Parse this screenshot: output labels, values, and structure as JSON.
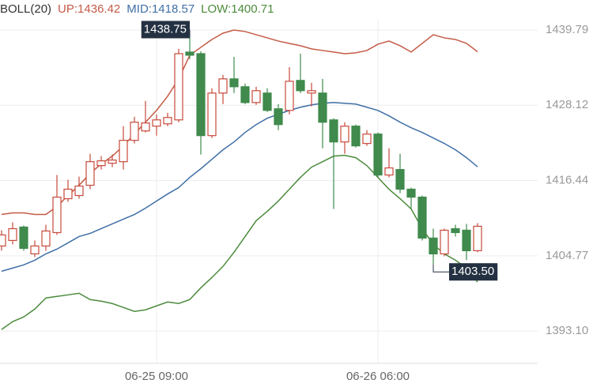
{
  "chart_data": {
    "type": "candlestick",
    "title": "BOLL(20)",
    "categories": [
      null,
      null,
      null,
      null,
      null,
      null,
      null,
      null,
      null,
      null,
      null,
      null,
      null,
      null,
      "06-25 09:00",
      null,
      null,
      null,
      null,
      null,
      null,
      null,
      null,
      null,
      null,
      null,
      null,
      null,
      null,
      null,
      null,
      null,
      null,
      null,
      "06-26 06:00",
      null,
      null,
      null,
      null,
      null,
      null,
      null,
      null,
      null
    ],
    "open": [
      1406.29,
      1407.15,
      1409.23,
      1405.07,
      1406.29,
      1408.37,
      1413.63,
      1414.12,
      1415.71,
      1418.76,
      1419.13,
      1419.37,
      1422.68,
      1424.14,
      1424.88,
      1425.24,
      1425.85,
      1436.37,
      1436.12,
      1423.41,
      1430.01,
      1432.21,
      1430.99,
      1428.54,
      1430.01,
      1427.57,
      1427.32,
      1431.97,
      1430.01,
      1430.01,
      1425.85,
      1422.43,
      1424.88,
      1422.19,
      1423.65,
      1417.3,
      1418.15,
      1415.1,
      1413.87,
      1407.52,
      1405.07,
      1408.98,
      1408.74,
      1405.56
    ],
    "high": [
      1408.74,
      1409.96,
      1409.47,
      1407.15,
      1409.59,
      1417.3,
      1416.56,
      1417.05,
      1420.6,
      1420.23,
      1420.48,
      1424.88,
      1426.34,
      1428.79,
      1426.71,
      1426.95,
      1436.86,
      1438.75,
      1436.49,
      1430.74,
      1432.82,
      1435.63,
      1431.48,
      1430.99,
      1430.74,
      1428.3,
      1434.04,
      1436.12,
      1431.6,
      1432.21,
      1426.1,
      1425.49,
      1425.12,
      1424.26,
      1423.9,
      1421.45,
      1420.6,
      1415.34,
      1414.12,
      1408.98,
      1408.98,
      1409.59,
      1409.72,
      1409.84
    ],
    "low": [
      1405.56,
      1406.54,
      1405.56,
      1404.58,
      1405.56,
      1408.01,
      1413.14,
      1413.63,
      1415.1,
      1418.15,
      1418.52,
      1418.15,
      1422.19,
      1423.9,
      1423.41,
      1424.88,
      1425.49,
      1435.27,
      1420.48,
      1423.04,
      1428.3,
      1430.01,
      1428.3,
      1428.18,
      1427.08,
      1424.26,
      1426.71,
      1430.01,
      1427.93,
      1421.45,
      1412.04,
      1420.6,
      1421.58,
      1421.82,
      1416.93,
      1416.93,
      1414.48,
      1412.04,
      1407.15,
      1403.5,
      1404.7,
      1407.76,
      1404.09,
      1405.32
    ],
    "close": [
      1408.01,
      1408.98,
      1405.93,
      1406.29,
      1408.62,
      1413.87,
      1415.1,
      1415.59,
      1419.37,
      1419.5,
      1419.62,
      1422.68,
      1425.49,
      1425.37,
      1425.85,
      1426.22,
      1436.12,
      1435.88,
      1423.41,
      1430.01,
      1432.21,
      1430.99,
      1428.54,
      1430.38,
      1427.32,
      1425.12,
      1431.84,
      1430.38,
      1430.38,
      1425.49,
      1422.43,
      1424.88,
      1421.82,
      1423.65,
      1417.3,
      1418.4,
      1415.1,
      1413.87,
      1407.52,
      1405.07,
      1408.74,
      1408.37,
      1405.56,
      1409.35
    ],
    "up_color": "#c8493b",
    "down_color": "#3f8a4c",
    "series": [
      {
        "name": "UP:1436.42",
        "color": "#c55a46",
        "values": [
          1411.18,
          1411.43,
          1411.43,
          1411.18,
          1411.18,
          1412.41,
          1414.12,
          1415.71,
          1417.54,
          1419.01,
          1420.23,
          1421.82,
          1423.65,
          1425.49,
          1427.32,
          1429.52,
          1432.21,
          1435.88,
          1437.1,
          1438.32,
          1439.3,
          1439.79,
          1439.55,
          1439.06,
          1438.57,
          1438.08,
          1437.71,
          1437.35,
          1436.86,
          1436.61,
          1436.37,
          1436.12,
          1436.25,
          1436.61,
          1437.59,
          1438.08,
          1437.35,
          1436.37,
          1437.71,
          1439.06,
          1438.57,
          1438.32,
          1437.71,
          1436.42
        ]
      },
      {
        "name": "MID:1418.57",
        "color": "#3f6fa6",
        "values": [
          1402.38,
          1402.87,
          1403.36,
          1404.09,
          1405.07,
          1405.81,
          1406.78,
          1407.76,
          1408.25,
          1408.98,
          1409.72,
          1410.45,
          1411.18,
          1412.16,
          1413.26,
          1414.36,
          1415.34,
          1416.93,
          1418.27,
          1419.74,
          1421.21,
          1422.43,
          1423.9,
          1425.12,
          1426.1,
          1426.71,
          1427.32,
          1427.81,
          1428.18,
          1428.42,
          1428.54,
          1428.42,
          1428.3,
          1427.81,
          1427.32,
          1426.47,
          1425.49,
          1424.63,
          1423.9,
          1423.04,
          1422.19,
          1421.21,
          1419.99,
          1418.57
        ]
      },
      {
        "name": "LOW:1400.71",
        "color": "#4c8b3c",
        "values": [
          1393.34,
          1394.56,
          1395.29,
          1396.51,
          1398.23,
          1398.47,
          1398.71,
          1398.96,
          1397.98,
          1397.74,
          1397.37,
          1396.76,
          1396.15,
          1396.39,
          1397.0,
          1397.61,
          1397.37,
          1397.98,
          1399.81,
          1401.4,
          1403.12,
          1405.32,
          1407.76,
          1410.21,
          1411.67,
          1413.26,
          1415.1,
          1416.93,
          1418.52,
          1419.37,
          1420.23,
          1420.35,
          1419.99,
          1418.76,
          1416.93,
          1415.1,
          1413.63,
          1412.04,
          1408.98,
          1406.54,
          1405.07,
          1404.09,
          1402.87,
          1400.71
        ]
      }
    ],
    "high_label": 1438.75,
    "low_label": {
      "value": 1403.5,
      "label": "1403.50"
    },
    "ylim": [
      1388.09,
      1441.38
    ],
    "yticks": [
      {
        "value": 1393.1,
        "label": "1393.10"
      },
      1404.77,
      1416.44,
      1428.12,
      1439.79
    ],
    "grid": true
  }
}
